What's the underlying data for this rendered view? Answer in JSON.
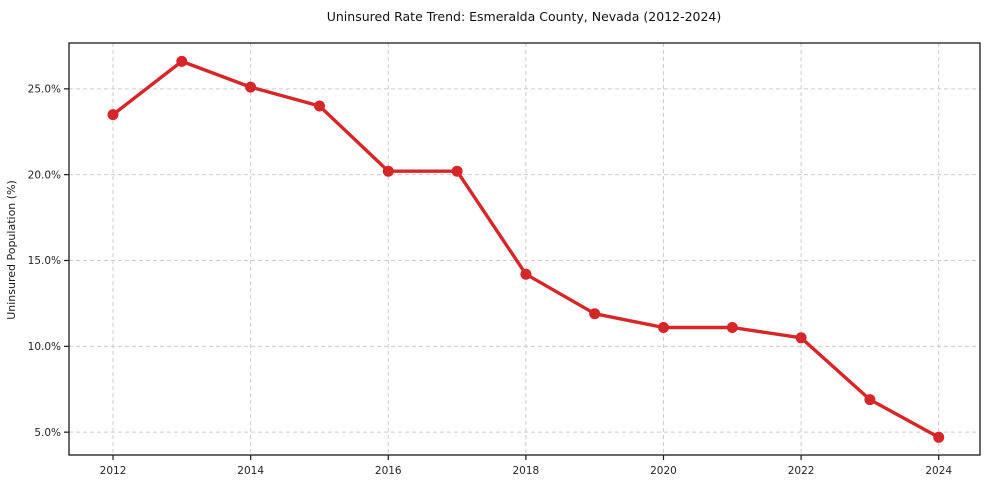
{
  "chart_data": {
    "type": "line",
    "title": "Uninsured Rate Trend: Esmeralda County, Nevada (2012-2024)",
    "xlabel": "",
    "ylabel": "Uninsured Population (%)",
    "x": [
      2012,
      2013,
      2014,
      2015,
      2016,
      2017,
      2018,
      2019,
      2020,
      2021,
      2022,
      2023,
      2024
    ],
    "values": [
      23.5,
      26.6,
      25.1,
      24.0,
      20.2,
      20.2,
      14.2,
      11.9,
      11.1,
      11.1,
      10.5,
      6.9,
      4.7
    ],
    "xticks": [
      2012,
      2014,
      2016,
      2018,
      2020,
      2022,
      2024
    ],
    "ytick_values": [
      5,
      10,
      15,
      20,
      25
    ],
    "ytick_labels": [
      "5.0%",
      "10.0%",
      "15.0%",
      "20.0%",
      "25.0%"
    ],
    "xlim": [
      2011.36,
      2024.6
    ],
    "ylim": [
      3.67,
      27.67
    ],
    "grid": "dashed",
    "legend": "none",
    "line_color": "#d62728",
    "marker": "circle",
    "grid_color": "#cccccc",
    "spine_color": "#1a1a1a"
  }
}
